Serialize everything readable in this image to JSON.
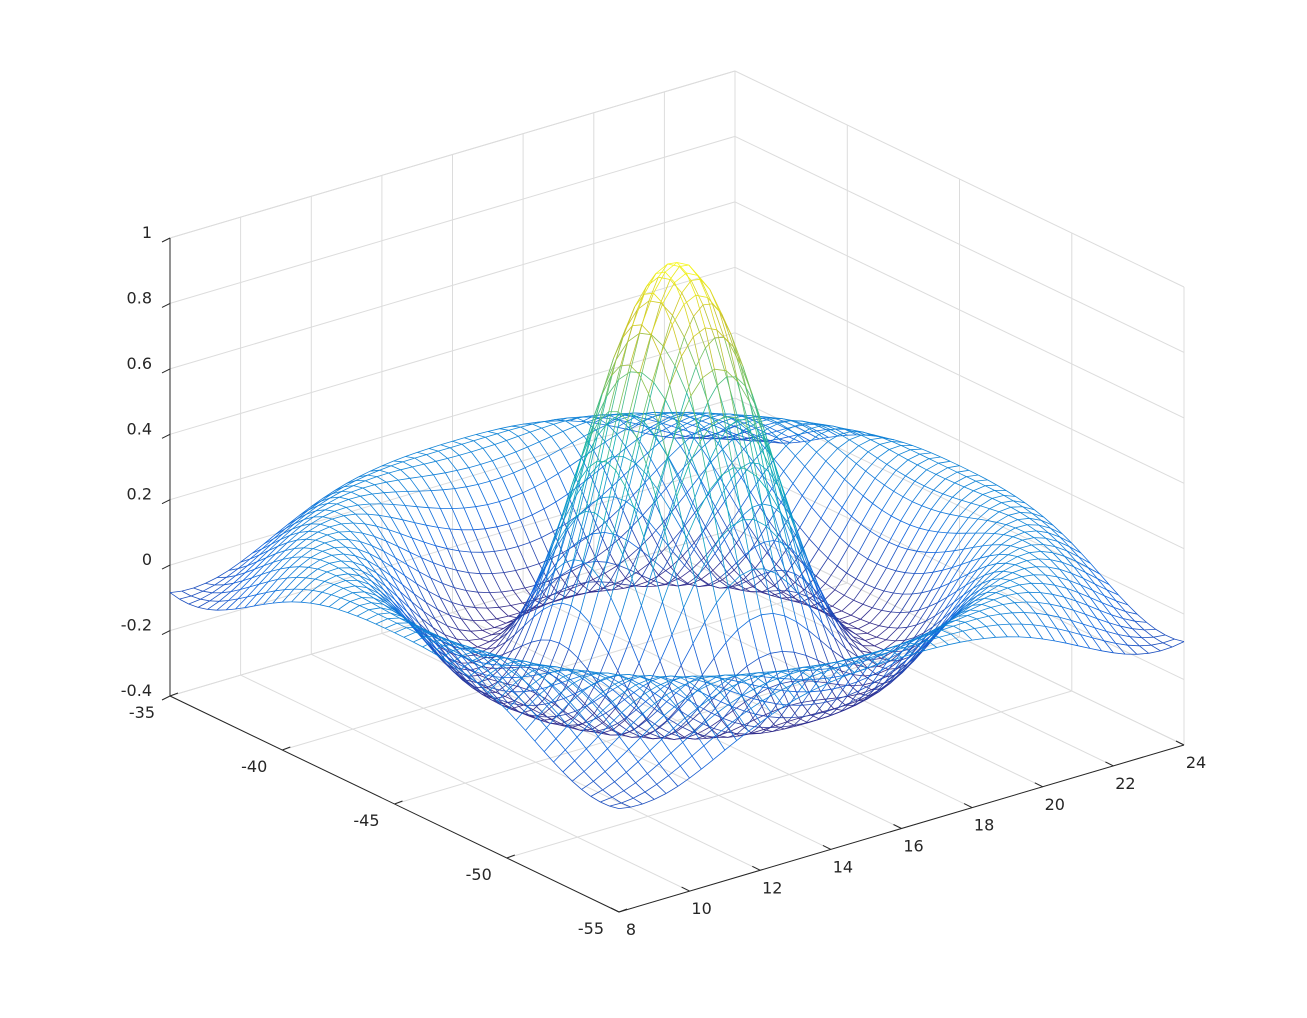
{
  "chart_data": {
    "type": "mesh-3d",
    "title": "",
    "xlabel": "",
    "ylabel": "",
    "zlabel": "",
    "xlim": [
      8,
      24
    ],
    "ylim": [
      -55,
      -35
    ],
    "zlim": [
      -0.4,
      1
    ],
    "grid": true,
    "colormap": "parula",
    "x_ticks": [
      8,
      10,
      12,
      14,
      16,
      18,
      20,
      22,
      24
    ],
    "x_tick_labels": [
      "8",
      "10",
      "12",
      "14",
      "16",
      "18",
      "20",
      "22",
      "24"
    ],
    "y_ticks": [
      -55,
      -50,
      -45,
      -40,
      -35
    ],
    "y_tick_labels": [
      "-55",
      "-50",
      "-45",
      "-40",
      "-35"
    ],
    "z_ticks": [
      -0.4,
      -0.2,
      0,
      0.2,
      0.4,
      0.6,
      0.8,
      1
    ],
    "z_tick_labels": [
      "-0.4",
      "-0.2",
      "0",
      "0.2",
      "0.4",
      "0.6",
      "0.8",
      "1"
    ],
    "surface": {
      "function": "sin(r)/r (sinc)",
      "x_range": [
        8,
        24
      ],
      "y_range": [
        -55,
        -35
      ],
      "grid_count": 49,
      "peak_value": 1,
      "peak_at": [
        16,
        -45
      ],
      "min_value": -0.217
    }
  }
}
